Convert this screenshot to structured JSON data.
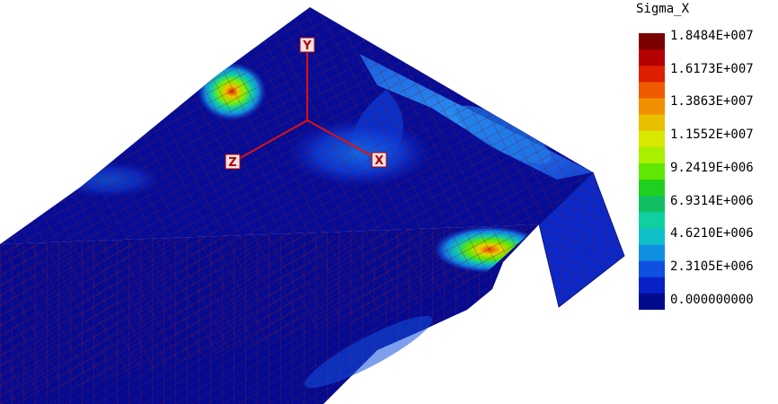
{
  "legend": {
    "title": "Sigma_X",
    "labels": [
      "1.8484E+007",
      "1.6173E+007",
      "1.3863E+007",
      "1.1552E+007",
      "9.2419E+006",
      "6.9314E+006",
      "4.6210E+006",
      "2.3105E+006",
      "0.000000000"
    ],
    "colors": [
      "#7a0000",
      "#b40000",
      "#e01e00",
      "#f05a00",
      "#f09000",
      "#e8c000",
      "#d8e800",
      "#a8f000",
      "#60e800",
      "#20d020",
      "#10c060",
      "#10d0a0",
      "#10c0c8",
      "#1090e0",
      "#1050e0",
      "#0820c8",
      "#000a8c"
    ]
  },
  "axes": {
    "y": "Y",
    "z": "Z",
    "x": "X"
  },
  "colors": {
    "mesh_line": "#7a1a3a",
    "deep_blue": "#050a90",
    "axis_red": "#e01010"
  }
}
